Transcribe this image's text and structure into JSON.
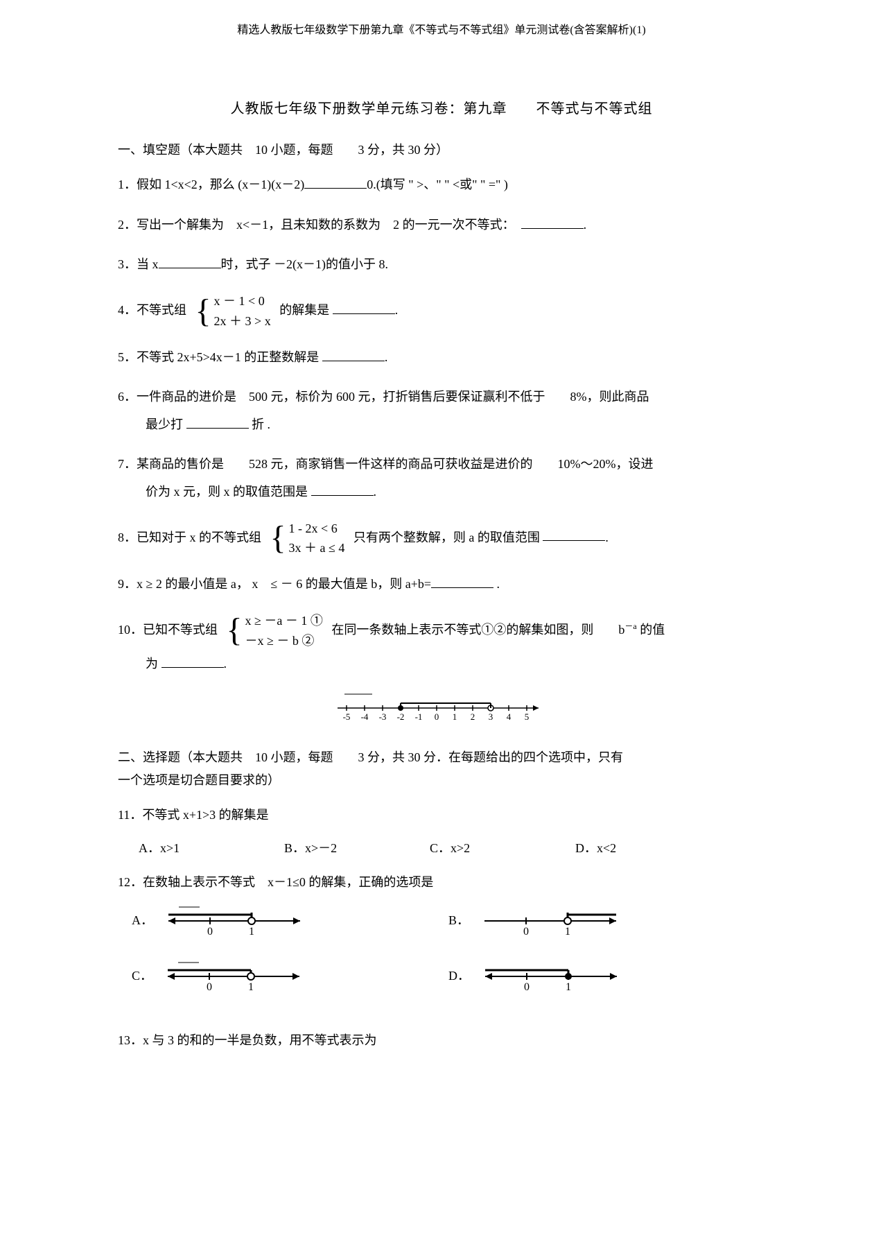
{
  "header": "精选人教版七年级数学下册第九章《不等式与不等式组》单元测试卷(含答案解析)(1)",
  "title": "人教版七年级下册数学单元练习卷：第九章　　不等式与不等式组",
  "section1_heading": "一、填空题（本大题共　10 小题，每题　　3 分，共 30 分）",
  "q1_a": "1．假如 1<x<2，那么 (x－1)(x－2)",
  "q1_b": "0.(填写 \" >、\" \" <或\" \" =\" )",
  "q2_a": "2．写出一个解集为　x<－1，且未知数的系数为　2 的一元一次不等式：",
  "q2_b": ".",
  "q3_a": "3．当 x",
  "q3_b": "时，式子 －2(x－1)的值小于 8.",
  "q4_a": "4．不等式组",
  "q4_line1": "x － 1 < 0",
  "q4_line2": "2x ＋ 3 > x",
  "q4_b": "的解集是",
  "q4_c": ".",
  "q5_a": "5．不等式 2x+5>4x－1 的正整数解是",
  "q5_b": ".",
  "q6_a": "6．一件商品的进价是　500 元，标价为 600 元，打折销售后要保证赢利不低于　　8%，则此商品",
  "q6_b": "最少打",
  "q6_c": "折 .",
  "q7_a": "7．某商品的售价是　　528 元，商家销售一件这样的商品可获收益是进价的　　10%～20%，设进",
  "q7_b": "价为 x 元，则 x 的取值范围是",
  "q7_c": ".",
  "q8_a": "8．已知对于 x 的不等式组",
  "q8_line1": "1 - 2x < 6",
  "q8_line2": "3x ＋ a ≤ 4",
  "q8_b": "只有两个整数解，则 a 的取值范围",
  "q8_c": ".",
  "q9_a": "9．x ≥ 2 的最小值是 a， x　≤ － 6 的最大值是 b，则 a+b=",
  "q9_b": ".",
  "q10_a": "10．已知不等式组",
  "q10_line1": "x ≥ －a － 1 ①",
  "q10_line2": "－x ≥ － b ②",
  "q10_b": "在同一条数轴上表示不等式①②的解集如图，则　　b",
  "q10_sup": "－a",
  "q10_c": " 的值",
  "q10_d": "为",
  "q10_e": ".",
  "numberline": {
    "min": -5,
    "max": 5,
    "filled_point": -2,
    "open_point": 3,
    "labels": [
      "-5",
      "-4",
      "-3",
      "-2",
      "-1",
      "0",
      "1",
      "2",
      "3",
      "4",
      "5"
    ]
  },
  "section2_heading_a": "二、选择题（本大题共　10 小题，每题　　3 分，共 30 分．在每题给出的四个选项中，只有",
  "section2_heading_b": "一个选项是切合题目要求的）",
  "q11": "11．不等式 x+1>3 的解集是",
  "q11_opts": {
    "A": "A．x>1",
    "B": "B．x>－2",
    "C": "C．x>2",
    "D": "D．x<2"
  },
  "q12": "12．在数轴上表示不等式　x－1≤0 的解集，正确的选项是",
  "q12_labels": {
    "A": "A．",
    "B": "B．",
    "C": "C．",
    "D": "D．"
  },
  "q12_options": {
    "A": {
      "ticks": [
        0,
        1
      ],
      "point": 1,
      "filled": false,
      "direction": "left",
      "bracket": true
    },
    "B": {
      "ticks": [
        0,
        1
      ],
      "point": 1,
      "filled": false,
      "direction": "right",
      "bracket": true
    },
    "C": {
      "ticks": [
        0,
        1
      ],
      "point": 1,
      "filled": false,
      "direction": "left",
      "bracket": false
    },
    "D": {
      "ticks": [
        0,
        1
      ],
      "point": 1,
      "filled": true,
      "direction": "left",
      "bracket": false
    }
  },
  "q13": "13．x 与 3 的和的一半是负数，用不等式表示为",
  "colors": {
    "text": "#000000",
    "bg": "#ffffff",
    "line": "#000000"
  }
}
